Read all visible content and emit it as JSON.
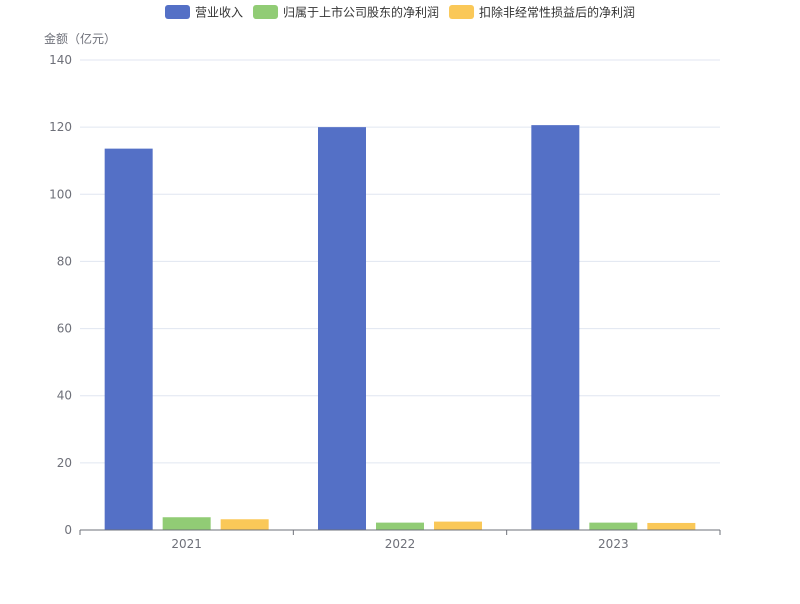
{
  "chart_data": {
    "type": "bar",
    "ylabel": "金额（亿元）",
    "categories": [
      "2021",
      "2022",
      "2023"
    ],
    "series": [
      {
        "name": "营业收入",
        "color": "#5470c6",
        "values": [
          113.6,
          120.0,
          120.6
        ]
      },
      {
        "name": "归属于上市公司股东的净利润",
        "color": "#91cc75",
        "values": [
          3.8,
          2.2,
          2.2
        ]
      },
      {
        "name": "扣除非经常性损益后的净利润",
        "color": "#fac858",
        "values": [
          3.2,
          2.5,
          2.1
        ]
      }
    ],
    "ylim": [
      0,
      140
    ],
    "yticks": [
      "0",
      "20",
      "40",
      "60",
      "80",
      "100",
      "120",
      "140"
    ],
    "grid": true,
    "legend": "top-center"
  }
}
